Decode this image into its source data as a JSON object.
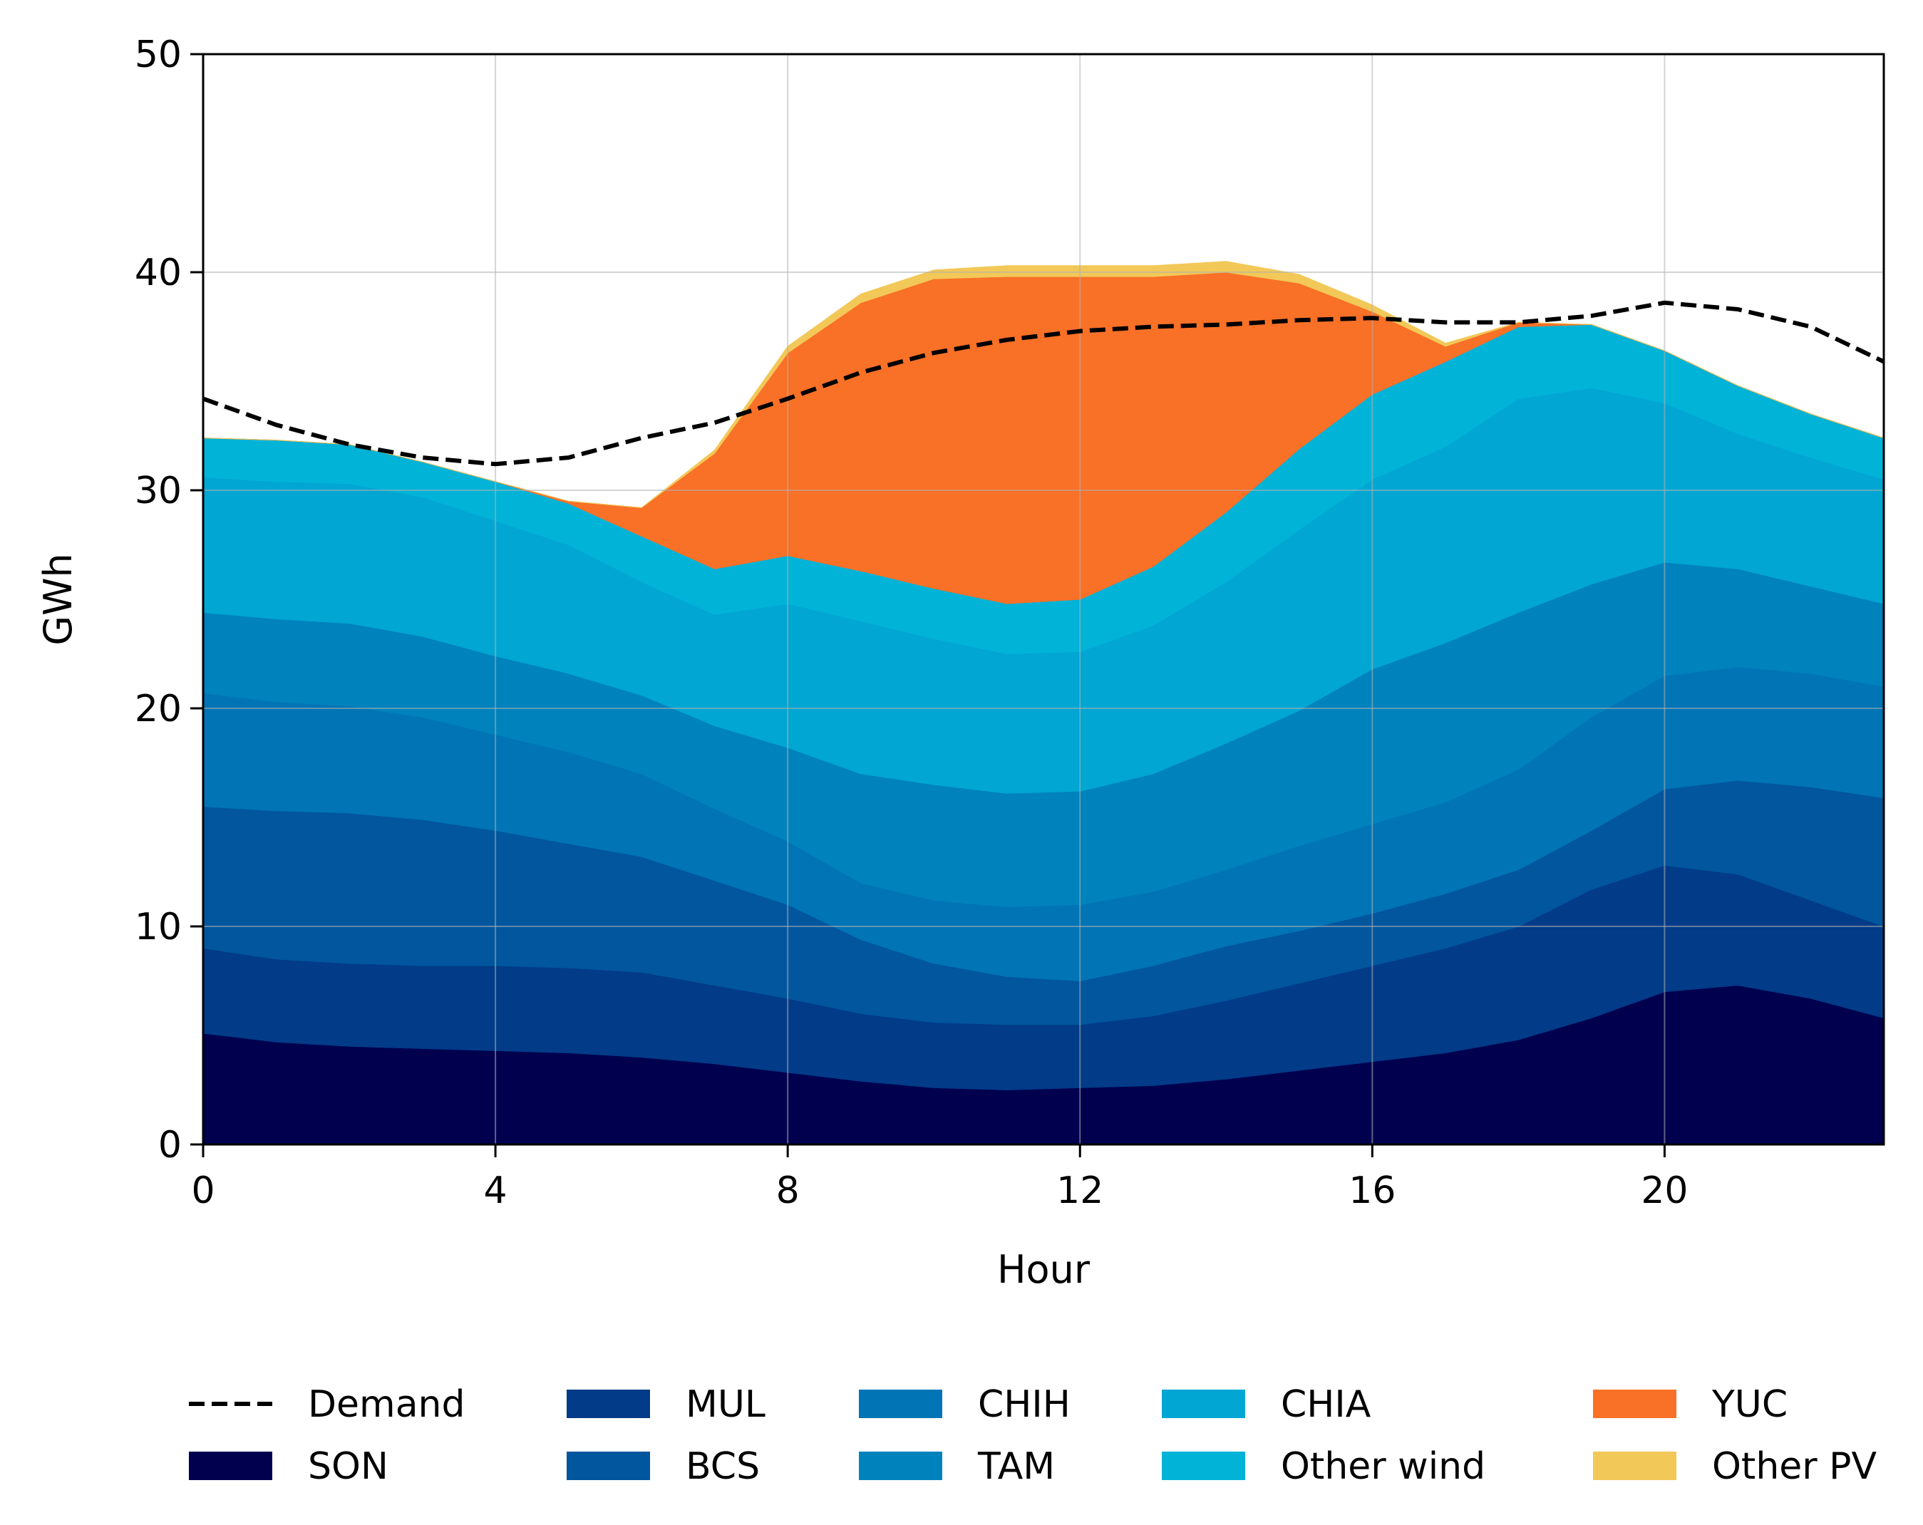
{
  "chart_data": {
    "type": "area",
    "stacked": true,
    "xlabel": "Hour",
    "ylabel": "GWh",
    "xlim": [
      0,
      23
    ],
    "ylim": [
      0,
      50
    ],
    "xticks": [
      0,
      4,
      8,
      12,
      16,
      20
    ],
    "yticks": [
      0,
      10,
      20,
      30,
      40,
      50
    ],
    "grid": true,
    "legend_position": "bottom",
    "x": [
      0,
      1,
      2,
      3,
      4,
      5,
      6,
      7,
      8,
      9,
      10,
      11,
      12,
      13,
      14,
      15,
      16,
      17,
      18,
      19,
      20,
      21,
      22,
      23
    ],
    "series": [
      {
        "name": "SON",
        "color": "#00004f",
        "values": [
          5.1,
          4.7,
          4.5,
          4.4,
          4.3,
          4.2,
          4.0,
          3.7,
          3.3,
          2.9,
          2.6,
          2.5,
          2.6,
          2.7,
          3.0,
          3.4,
          3.8,
          4.2,
          4.8,
          5.8,
          7.0,
          7.3,
          6.7,
          5.8
        ]
      },
      {
        "name": "MUL",
        "color": "#023b87",
        "values": [
          3.9,
          3.8,
          3.8,
          3.8,
          3.9,
          3.9,
          3.9,
          3.6,
          3.4,
          3.1,
          3.0,
          3.0,
          2.9,
          3.2,
          3.6,
          4.0,
          4.4,
          4.8,
          5.2,
          5.9,
          5.8,
          5.1,
          4.5,
          4.2
        ]
      },
      {
        "name": "BCS",
        "color": "#01569e",
        "values": [
          6.5,
          6.8,
          6.9,
          6.7,
          6.2,
          5.7,
          5.3,
          4.8,
          4.3,
          3.4,
          2.7,
          2.2,
          2.0,
          2.3,
          2.5,
          2.4,
          2.4,
          2.5,
          2.6,
          2.7,
          3.5,
          4.3,
          5.2,
          5.9
        ]
      },
      {
        "name": "CHIH",
        "color": "#0174b5",
        "values": [
          5.2,
          5.0,
          4.9,
          4.7,
          4.4,
          4.2,
          3.8,
          3.3,
          2.9,
          2.6,
          2.9,
          3.2,
          3.5,
          3.4,
          3.5,
          3.9,
          4.1,
          4.2,
          4.6,
          5.2,
          5.2,
          5.2,
          5.2,
          5.1
        ]
      },
      {
        "name": "TAM",
        "color": "#0082bd",
        "values": [
          3.7,
          3.8,
          3.8,
          3.7,
          3.6,
          3.6,
          3.6,
          3.8,
          4.3,
          5.0,
          5.3,
          5.2,
          5.2,
          5.4,
          5.8,
          6.2,
          7.1,
          7.3,
          7.2,
          6.1,
          5.2,
          4.5,
          4.0,
          3.8
        ]
      },
      {
        "name": "CHIA",
        "color": "#01a6d3",
        "values": [
          6.2,
          6.3,
          6.4,
          6.4,
          6.2,
          5.9,
          5.2,
          5.1,
          6.6,
          7.0,
          6.7,
          6.4,
          6.4,
          6.8,
          7.4,
          8.3,
          8.7,
          9.0,
          9.8,
          9.0,
          7.3,
          6.2,
          5.9,
          5.7
        ]
      },
      {
        "name": "Other wind",
        "color": "#02b3d8",
        "values": [
          1.8,
          1.9,
          1.8,
          1.6,
          1.8,
          1.9,
          2.1,
          2.1,
          2.2,
          2.3,
          2.3,
          2.3,
          2.4,
          2.7,
          3.2,
          3.7,
          3.9,
          3.9,
          3.3,
          2.9,
          2.4,
          2.2,
          2.0,
          1.9
        ]
      },
      {
        "name": "YUC",
        "color": "#f97027",
        "values": [
          0.0,
          0.0,
          0.0,
          0.0,
          0.0,
          0.1,
          1.3,
          5.3,
          9.3,
          12.3,
          14.2,
          15.0,
          14.8,
          13.3,
          11.0,
          7.6,
          3.8,
          0.7,
          0.2,
          0.0,
          0.0,
          0.0,
          0.0,
          0.0
        ]
      },
      {
        "name": "Other PV",
        "color": "#f2c858",
        "values": [
          0.0,
          0.0,
          0.0,
          0.0,
          0.0,
          0.0,
          0.0,
          0.15,
          0.3,
          0.4,
          0.4,
          0.5,
          0.5,
          0.5,
          0.5,
          0.4,
          0.3,
          0.15,
          0.0,
          0.0,
          0.0,
          0.0,
          0.0,
          0.0
        ]
      }
    ],
    "demand": {
      "name": "Demand",
      "color": "#000000",
      "values": [
        34.2,
        33.0,
        32.1,
        31.5,
        31.2,
        31.5,
        32.4,
        33.1,
        34.2,
        35.4,
        36.3,
        36.9,
        37.3,
        37.5,
        37.6,
        37.8,
        37.9,
        37.7,
        37.7,
        38.0,
        38.6,
        38.3,
        37.5,
        35.9
      ]
    },
    "legend": [
      {
        "name": "Demand",
        "kind": "line"
      },
      {
        "name": "SON",
        "kind": "patch"
      },
      {
        "name": "MUL",
        "kind": "patch"
      },
      {
        "name": "BCS",
        "kind": "patch"
      },
      {
        "name": "CHIH",
        "kind": "patch"
      },
      {
        "name": "TAM",
        "kind": "patch"
      },
      {
        "name": "CHIA",
        "kind": "patch"
      },
      {
        "name": "Other wind",
        "kind": "patch"
      },
      {
        "name": "YUC",
        "kind": "patch"
      },
      {
        "name": "Other PV",
        "kind": "patch"
      }
    ]
  }
}
